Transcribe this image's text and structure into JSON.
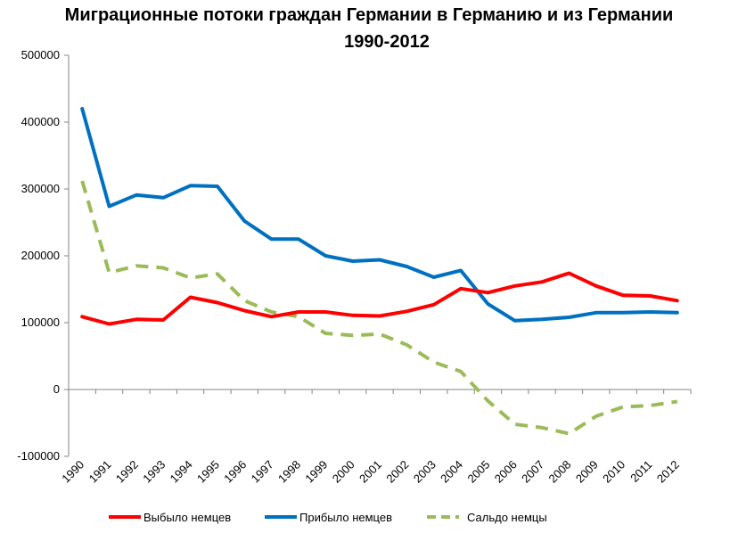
{
  "chart_data": {
    "type": "line",
    "title": "Миграционные потоки граждан Германии в Германию и из Германии",
    "subtitle": "1990-2012",
    "xlabel": "",
    "ylabel": "",
    "x": [
      "1990",
      "1991",
      "1992",
      "1993",
      "1994",
      "1995",
      "1996",
      "1997",
      "1998",
      "1999",
      "2000",
      "2001",
      "2002",
      "2003",
      "2004",
      "2005",
      "2006",
      "2007",
      "2008",
      "2009",
      "2010",
      "2011",
      "2012"
    ],
    "ylim": [
      -100000,
      500000
    ],
    "yticks": [
      -100000,
      0,
      100000,
      200000,
      300000,
      400000,
      500000
    ],
    "ytick_labels": [
      "-100000",
      "0",
      "100000",
      "200000",
      "300000",
      "400000",
      "500000"
    ],
    "grid": false,
    "legend_position": "bottom",
    "series": [
      {
        "name": "Выбыло немцев",
        "color": "#ff0000",
        "style": "solid",
        "values": [
          109000,
          98000,
          105000,
          104000,
          138000,
          130000,
          118000,
          109000,
          116000,
          116000,
          111000,
          110000,
          117000,
          127000,
          151000,
          145000,
          155000,
          161000,
          174000,
          155000,
          141000,
          140000,
          133000
        ]
      },
      {
        "name": "Прибыло немцев",
        "color": "#0070c0",
        "style": "solid",
        "values": [
          420000,
          274000,
          291000,
          287000,
          305000,
          304000,
          252000,
          225000,
          225000,
          200000,
          192000,
          194000,
          184000,
          168000,
          178000,
          128000,
          103000,
          105000,
          108000,
          115000,
          115000,
          116000,
          115000
        ]
      },
      {
        "name": "Сальдо немцы",
        "color": "#9bbb59",
        "style": "dashed",
        "values": [
          312000,
          175000,
          185000,
          182000,
          167000,
          173000,
          133000,
          116000,
          109000,
          84000,
          81000,
          83000,
          67000,
          41000,
          27000,
          -17000,
          -52000,
          -57000,
          -66000,
          -40000,
          -26000,
          -24000,
          -18000
        ]
      }
    ]
  }
}
